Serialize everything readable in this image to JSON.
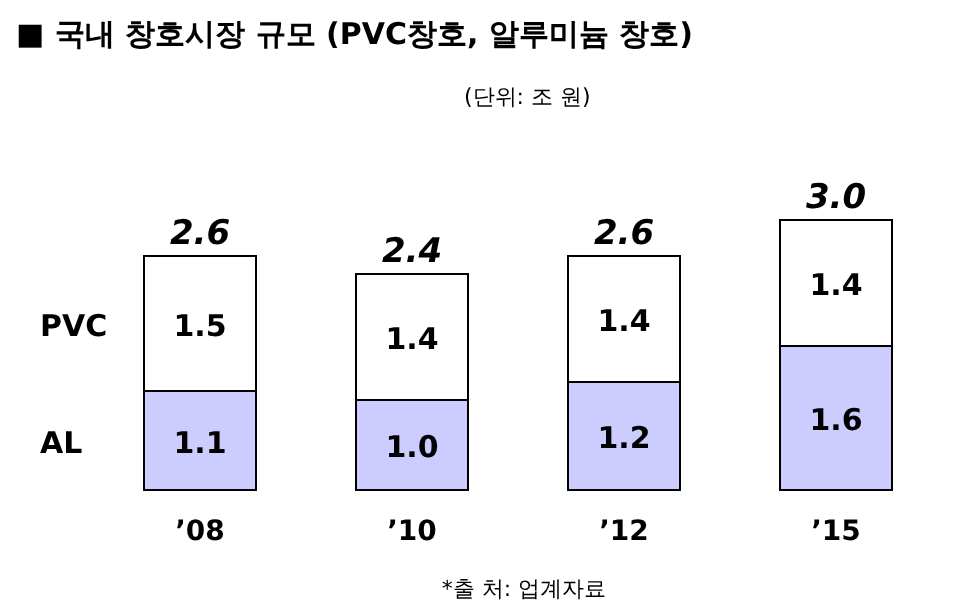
{
  "chart_data": {
    "type": "bar",
    "title": "■ 국내 창호시장 규모 (PVC창호, 알루미늄 창호)",
    "subtitle": "(단위: 조 원)",
    "annotations": [
      "*출 처: 업계자료"
    ],
    "categories": [
      "’08",
      "’10",
      "’12",
      "’15"
    ],
    "stacked": true,
    "series": [
      {
        "name": "AL",
        "color": "#ccccff",
        "values": [
          1.1,
          1.0,
          1.2,
          1.6
        ],
        "value_labels": [
          "1.1",
          "1.0",
          "1.2",
          "1.6"
        ]
      },
      {
        "name": "PVC",
        "color": "#ffffff",
        "values": [
          1.5,
          1.4,
          1.4,
          1.4
        ],
        "value_labels": [
          "1.5",
          "1.4",
          "1.4",
          "1.4"
        ]
      }
    ],
    "totals": [
      "2.6",
      "2.4",
      "2.6",
      "3.0"
    ]
  }
}
